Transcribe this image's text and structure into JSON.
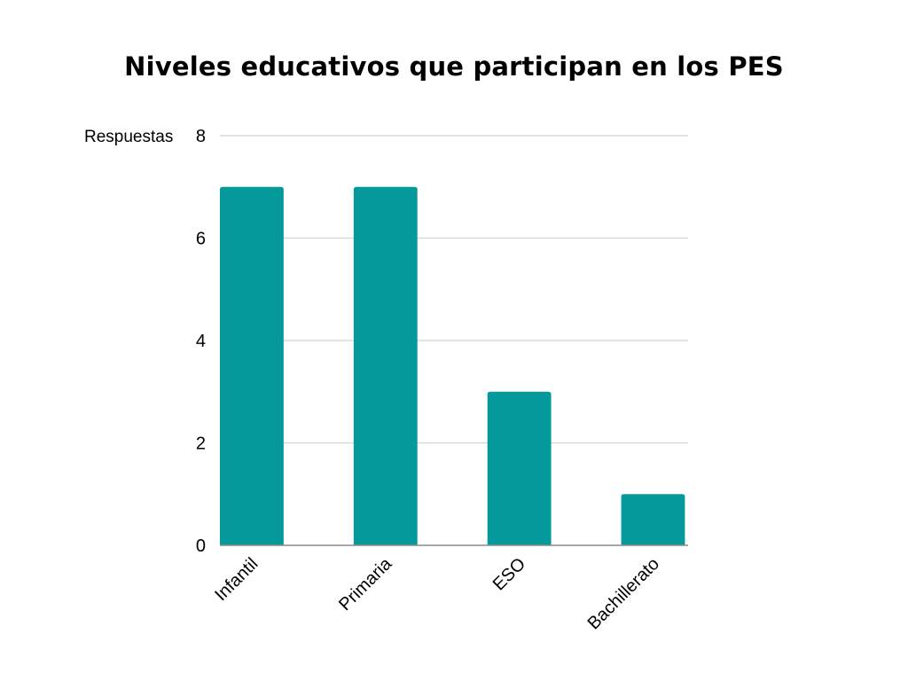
{
  "chart_data": {
    "type": "bar",
    "title": "Niveles educativos que participan en los PES",
    "ylabel": "Respuestas",
    "xlabel": "",
    "categories": [
      "Infantil",
      "Primaria",
      "ESO",
      "Bachillerato"
    ],
    "values": [
      7,
      7,
      3,
      1
    ],
    "ylim": [
      0,
      8
    ],
    "yticks": [
      0,
      2,
      4,
      6,
      8
    ],
    "grid": true,
    "legend": "none",
    "colors": {
      "bar": "#05999c",
      "grid": "#d4d4d4",
      "axis": "#8c8c8c"
    }
  }
}
